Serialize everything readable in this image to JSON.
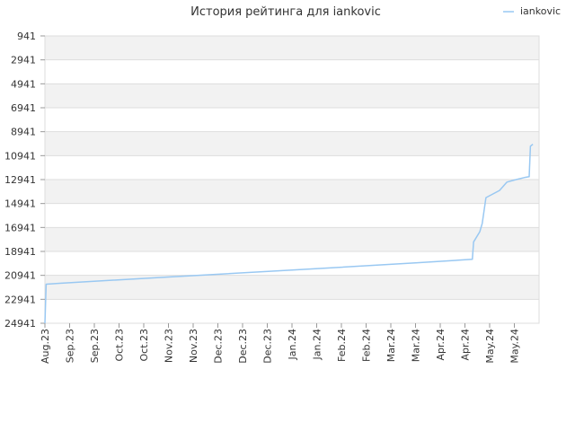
{
  "chart_data": {
    "type": "line",
    "title": "История рейтинга для iankovic",
    "xlabel": "",
    "ylabel": "",
    "y_reversed": true,
    "ylim": [
      941,
      24941
    ],
    "y_ticks": [
      "941",
      "2941",
      "4941",
      "6941",
      "8941",
      "10941",
      "12941",
      "14941",
      "16941",
      "18941",
      "20941",
      "22941",
      "24941"
    ],
    "x_ticks": [
      "Aug.23",
      "Sep.23",
      "Sep.23",
      "Oct.23",
      "Oct.23",
      "Nov.23",
      "Nov.23",
      "Dec.23",
      "Dec.23",
      "Dec.23",
      "Jan.24",
      "Jan.24",
      "Feb.24",
      "Feb.24",
      "Mar.24",
      "Mar.24",
      "Apr.24",
      "Apr.24",
      "May.24",
      "May.24"
    ],
    "grid": true,
    "band_fill": "#f2f2f2",
    "legend_position": "top-right",
    "series": [
      {
        "name": "iankovic",
        "color": "#99c8f2",
        "points": [
          [
            0.0,
            24941
          ],
          [
            0.05,
            21680
          ],
          [
            0.6,
            21600
          ],
          [
            5.0,
            21080
          ],
          [
            10.0,
            20500
          ],
          [
            15.0,
            19900
          ],
          [
            17.3,
            19600
          ],
          [
            17.35,
            18150
          ],
          [
            17.6,
            17300
          ],
          [
            17.7,
            16600
          ],
          [
            17.85,
            14450
          ],
          [
            18.4,
            13850
          ],
          [
            18.7,
            13150
          ],
          [
            19.0,
            12980
          ],
          [
            19.45,
            12750
          ],
          [
            19.6,
            12700
          ],
          [
            19.65,
            10150
          ],
          [
            19.75,
            9990
          ]
        ]
      }
    ]
  }
}
